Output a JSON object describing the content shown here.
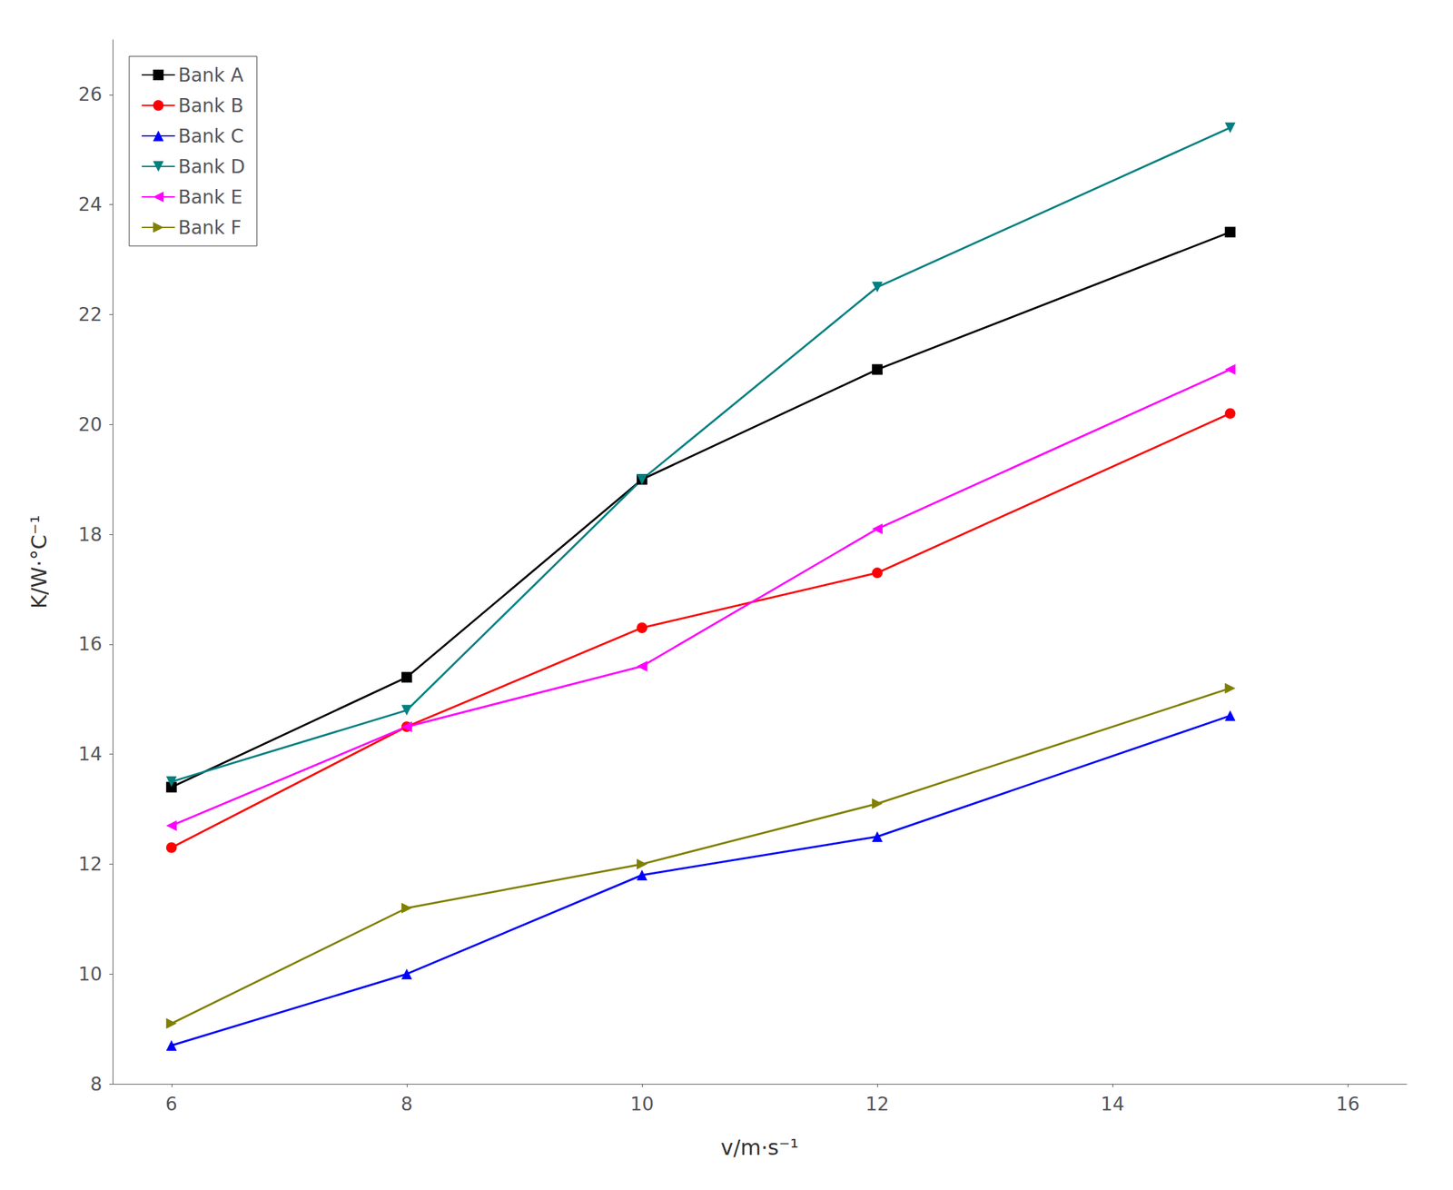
{
  "chart_data": {
    "type": "line",
    "xlabel": "v/m·s⁻¹",
    "ylabel": "K/W·°C⁻¹",
    "x": [
      6,
      8,
      10,
      12,
      15
    ],
    "series": [
      {
        "name": "Bank A",
        "color": "#000000",
        "marker": "square",
        "values": [
          13.4,
          15.4,
          19.0,
          21.0,
          23.5
        ]
      },
      {
        "name": "Bank B",
        "color": "#ff0000",
        "marker": "circle",
        "values": [
          12.3,
          14.5,
          16.3,
          17.3,
          20.2
        ]
      },
      {
        "name": "Bank C",
        "color": "#0000ff",
        "marker": "triangle-up",
        "values": [
          8.7,
          10.0,
          11.8,
          12.5,
          14.7
        ]
      },
      {
        "name": "Bank D",
        "color": "#008080",
        "marker": "triangle-down",
        "values": [
          13.5,
          14.8,
          19.0,
          22.5,
          25.4
        ]
      },
      {
        "name": "Bank E",
        "color": "#ff00ff",
        "marker": "triangle-left",
        "values": [
          12.7,
          14.5,
          15.6,
          18.1,
          21.0
        ]
      },
      {
        "name": "Bank F",
        "color": "#808000",
        "marker": "triangle-right",
        "values": [
          9.1,
          11.2,
          12.0,
          13.1,
          15.2
        ]
      }
    ],
    "xlim": [
      5.5,
      16.5
    ],
    "ylim": [
      8,
      27
    ],
    "xticks": [
      6,
      8,
      10,
      12,
      14,
      16
    ],
    "yticks": [
      8,
      10,
      12,
      14,
      16,
      18,
      20,
      22,
      24,
      26
    ],
    "grid": false,
    "legend": "upper left"
  }
}
